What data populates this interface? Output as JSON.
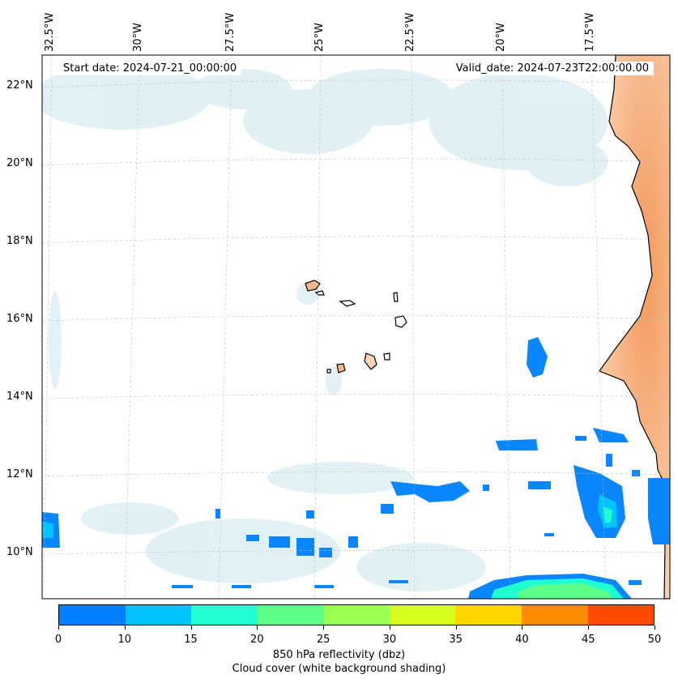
{
  "header": {
    "start_date": "Start date: 2024-07-21_00:00:00",
    "valid_date": "Valid_date: 2024-07-23T22:00:00.00"
  },
  "axes": {
    "longitude_labels": [
      "32.5°W",
      "30°W",
      "27.5°W",
      "25°W",
      "22.5°W",
      "20°W",
      "17.5°W"
    ],
    "latitude_labels": [
      "22°N",
      "20°N",
      "18°N",
      "16°N",
      "14°N",
      "12°N",
      "10°N"
    ]
  },
  "colorbar": {
    "ticks": [
      "0",
      "10",
      "15",
      "20",
      "25",
      "30",
      "35",
      "40",
      "45",
      "50"
    ],
    "colors": [
      "#0080ff",
      "#00c4ff",
      "#1effd2",
      "#5cff8a",
      "#9aff4e",
      "#d6ff1e",
      "#ffd600",
      "#ff8c00",
      "#ff4a00"
    ],
    "label_line1": "850 hPa reflectivity (dbz)",
    "label_line2": "Cloud cover (white background shading)"
  },
  "colors": {
    "land": "#f6b58a",
    "cloud": "#cfe8f0",
    "reflectivity_low": "#0a86ff",
    "reflectivity_mid": "#00c4ff",
    "reflectivity_high": "#1effd2",
    "reflectivity_peak": "#5cff8a"
  }
}
